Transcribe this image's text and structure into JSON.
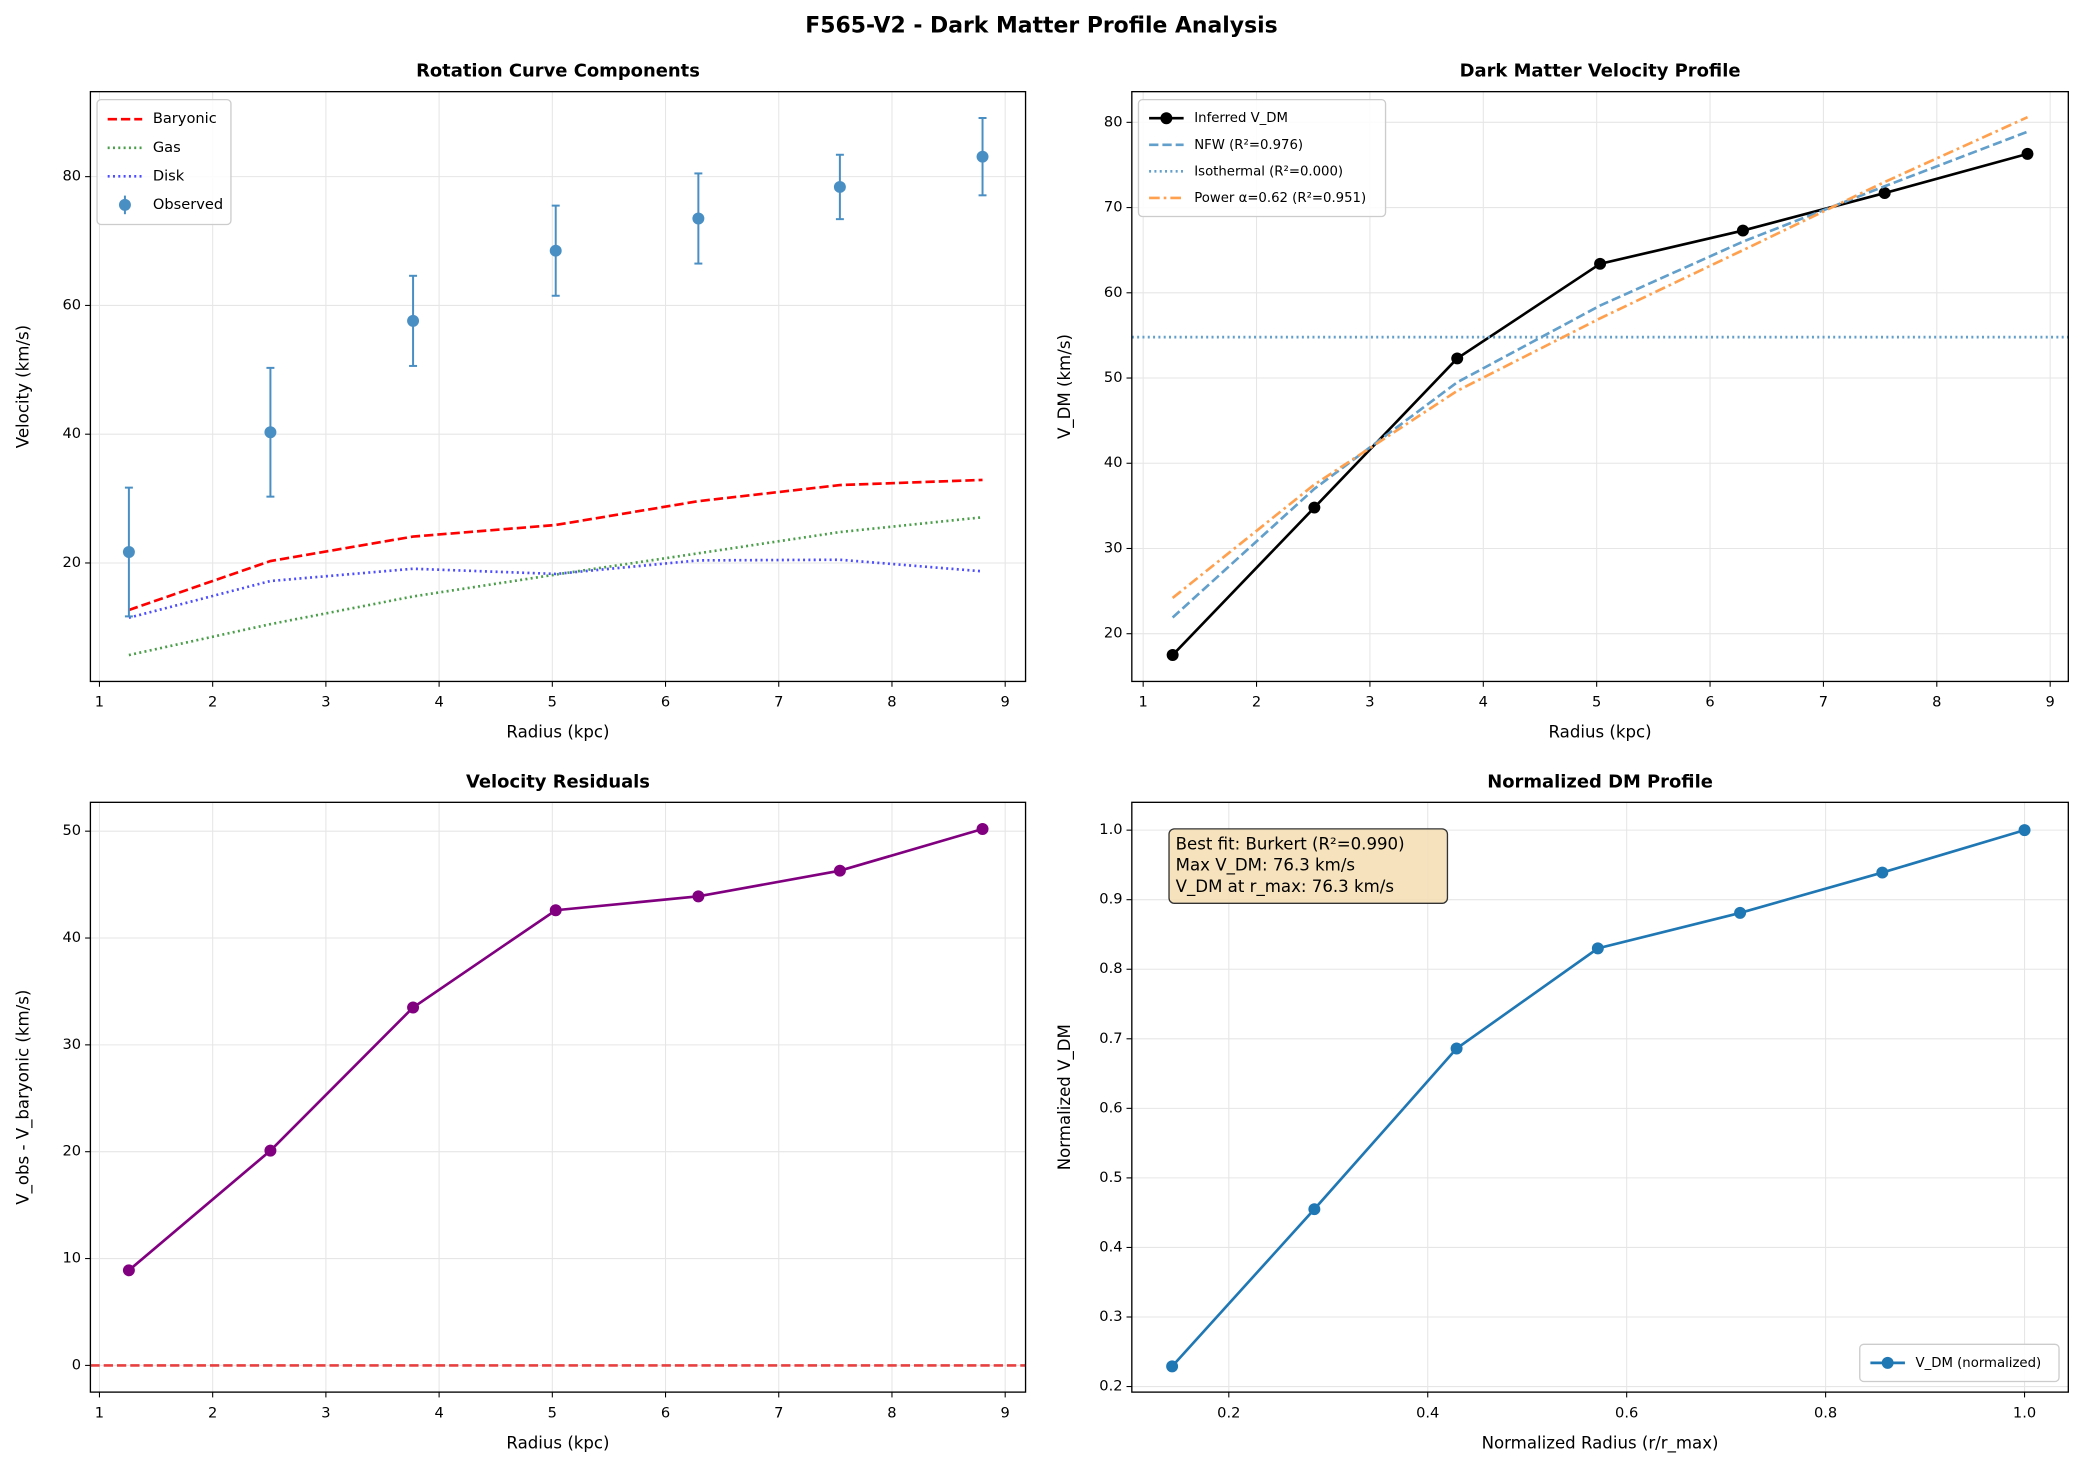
{
  "title": "F565-V2 - Dark Matter Profile Analysis",
  "chart_data": [
    {
      "type": "line",
      "title": "Rotation Curve Components",
      "xlabel": "Radius (kpc)",
      "ylabel": "Velocity (km/s)",
      "x": [
        1.26,
        2.51,
        3.77,
        5.03,
        6.29,
        7.54,
        8.8
      ],
      "xlim": [
        0.92,
        9.18
      ],
      "ylim": [
        1.6,
        93.2
      ],
      "xticks": [
        1,
        2,
        3,
        4,
        5,
        6,
        7,
        8,
        9
      ],
      "yticks": [
        20,
        40,
        60,
        80
      ],
      "grid": true,
      "legend": "upper left",
      "series": [
        {
          "name": "Baryonic",
          "color": "#ff0000",
          "linestyle": "dashed",
          "values": [
            12.7,
            20.3,
            24.1,
            25.9,
            29.6,
            32.1,
            32.9
          ]
        },
        {
          "name": "Gas",
          "color": "#4a9e4a",
          "linestyle": "dotted",
          "values": [
            5.7,
            10.5,
            14.8,
            18.2,
            21.5,
            24.8,
            27.1
          ]
        },
        {
          "name": "Disk",
          "color": "#4d4dff",
          "linestyle": "dotted",
          "values": [
            11.5,
            17.2,
            19.1,
            18.3,
            20.4,
            20.5,
            18.7
          ]
        },
        {
          "name": "Observed",
          "color": "#4a8fc4",
          "linestyle": "none",
          "marker": "errorbar",
          "values": [
            21.7,
            40.3,
            57.6,
            68.5,
            73.5,
            78.4,
            83.1
          ],
          "errors": [
            10,
            10,
            7,
            7,
            7,
            5,
            6
          ]
        }
      ]
    },
    {
      "type": "line",
      "title": "Dark Matter Velocity Profile",
      "xlabel": "Radius (kpc)",
      "ylabel": "V_DM (km/s)",
      "x": [
        1.26,
        2.51,
        3.77,
        5.03,
        6.29,
        7.54,
        8.8
      ],
      "xlim": [
        0.9,
        9.16
      ],
      "ylim": [
        14.4,
        83.6
      ],
      "xticks": [
        1,
        2,
        3,
        4,
        5,
        6,
        7,
        8,
        9
      ],
      "yticks": [
        20,
        30,
        40,
        50,
        60,
        70,
        80
      ],
      "grid": true,
      "legend": "upper left",
      "series": [
        {
          "name": "Inferred V_DM",
          "color": "#000000",
          "linestyle": "solid",
          "marker": "o",
          "values": [
            17.5,
            34.8,
            52.3,
            63.4,
            67.3,
            71.7,
            76.3
          ]
        },
        {
          "name": "NFW (R²=0.976)",
          "color": "#629fca",
          "linestyle": "dashed",
          "values": [
            21.9,
            37,
            49.5,
            58.5,
            66,
            72.5,
            78.9
          ]
        },
        {
          "name": "Isothermal (R²=0.000)",
          "color": "#629fca",
          "linestyle": "dotted",
          "hline": 54.8
        },
        {
          "name": "Power α=0.62 (R²=0.951)",
          "color": "#ffa04e",
          "linestyle": "dashdot",
          "values": [
            24.2,
            37.5,
            48.5,
            57,
            65,
            73,
            80.6
          ]
        }
      ]
    },
    {
      "type": "line",
      "title": "Velocity Residuals",
      "xlabel": "Radius (kpc)",
      "ylabel": "V_obs - V_baryonic (km/s)",
      "x": [
        1.26,
        2.51,
        3.77,
        5.03,
        6.29,
        7.54,
        8.8
      ],
      "xlim": [
        0.92,
        9.18
      ],
      "ylim": [
        -2.5,
        52.7
      ],
      "xticks": [
        1,
        2,
        3,
        4,
        5,
        6,
        7,
        8,
        9
      ],
      "yticks": [
        0,
        10,
        20,
        30,
        40,
        50
      ],
      "grid": true,
      "series": [
        {
          "color": "#800080",
          "linestyle": "solid",
          "marker": "o",
          "values": [
            8.9,
            20.1,
            33.5,
            42.6,
            43.9,
            46.3,
            50.2
          ]
        },
        {
          "color": "#e84040",
          "linestyle": "dashed",
          "hline": 0
        }
      ]
    },
    {
      "type": "line",
      "title": "Normalized DM Profile",
      "xlabel": "Normalized Radius (r/r_max)",
      "ylabel": "Normalized V_DM",
      "x": [
        0.143,
        0.286,
        0.429,
        0.571,
        0.714,
        0.857,
        1.0
      ],
      "xlim": [
        0.1025,
        1.044
      ],
      "ylim": [
        0.192,
        1.04
      ],
      "xticks": [
        0.2,
        0.4,
        0.6,
        0.8,
        {
          "value": 1,
          "label": "1.0"
        }
      ],
      "yticks": [
        0.2,
        0.3,
        0.4,
        0.5,
        0.6,
        0.7,
        0.8,
        0.9,
        {
          "value": 1,
          "label": "1.0"
        }
      ],
      "grid": true,
      "legend": "lower right",
      "annotation": [
        "Best fit: Burkert (R²=0.990)",
        "Max V_DM: 76.3 km/s",
        "V_DM at r_max: 76.3 km/s"
      ],
      "series": [
        {
          "name": "V_DM (normalized)",
          "color": "#1f77b4",
          "linestyle": "solid",
          "marker": "o",
          "values": [
            0.229,
            0.455,
            0.686,
            0.83,
            0.881,
            0.939,
            1.0
          ]
        }
      ]
    }
  ]
}
